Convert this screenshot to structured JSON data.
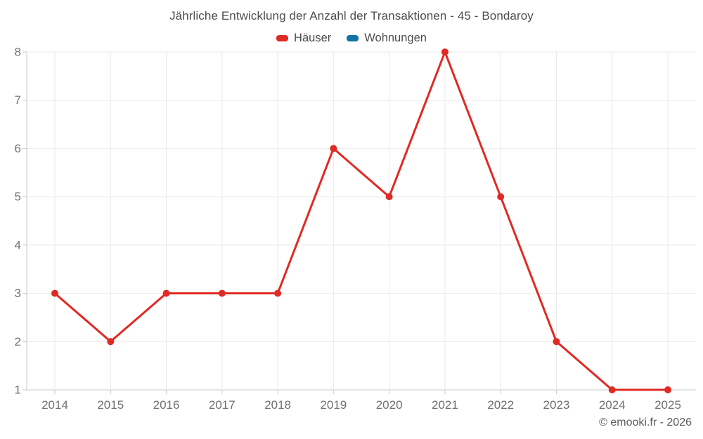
{
  "chart_data": {
    "type": "line",
    "title": "Jährliche Entwicklung der Anzahl der Transaktionen - 45 - Bondaroy",
    "categories": [
      "2014",
      "2015",
      "2016",
      "2017",
      "2018",
      "2019",
      "2020",
      "2021",
      "2022",
      "2023",
      "2024",
      "2025"
    ],
    "series": [
      {
        "name": "Häuser",
        "color": "#e02a25",
        "values": [
          3,
          2,
          3,
          3,
          3,
          6,
          5,
          8,
          5,
          2,
          1,
          1
        ]
      },
      {
        "name": "Wohnungen",
        "color": "#1173a5",
        "values": []
      }
    ],
    "ylim": [
      1,
      8
    ],
    "ytick_step": 1,
    "grid": true,
    "legend_position": "top",
    "marker_radius": 5,
    "line_width": 3,
    "colors": {
      "grid": "#e9e9e9",
      "axis": "#c9c9c9",
      "tick_label": "#707070",
      "title": "#4d4d4d"
    }
  },
  "footer": {
    "credit": "© emooki.fr - 2026"
  }
}
